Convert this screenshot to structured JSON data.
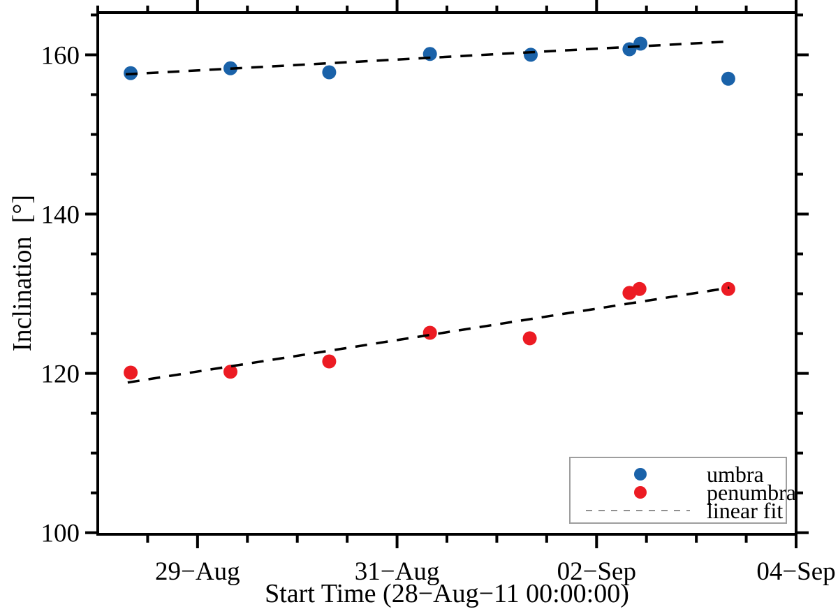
{
  "figure": {
    "background": "#ffffff",
    "description": "Scatter plot of sunspot umbra and penumbra inclination versus start time with dashed linear fits"
  },
  "chart_data": {
    "type": "scatter",
    "title": "",
    "xlabel": "Start Time (28−Aug−11 00:00:00)",
    "ylabel": "Inclination  [°]",
    "x_unit": "days after 28-Aug-11 00:00:00",
    "y_unit": "degrees",
    "xlim": [
      0,
      7
    ],
    "ylim": [
      99.8,
      165.3
    ],
    "grid": false,
    "x_major_ticks": [
      {
        "value": 1,
        "label": "29−Aug"
      },
      {
        "value": 3,
        "label": "31−Aug"
      },
      {
        "value": 5,
        "label": "02−Sep"
      },
      {
        "value": 7,
        "label": "04−Sep"
      }
    ],
    "x_minor_ticks": [
      0.5,
      1.5,
      2,
      2.5,
      3.5,
      4,
      4.5,
      5.5,
      6,
      6.5
    ],
    "y_major_ticks": [
      {
        "value": 100,
        "label": "100"
      },
      {
        "value": 120,
        "label": "120"
      },
      {
        "value": 140,
        "label": "140"
      },
      {
        "value": 160,
        "label": "160"
      }
    ],
    "y_minor_ticks": [
      105,
      110,
      115,
      125,
      130,
      135,
      145,
      150,
      155,
      165
    ],
    "series": [
      {
        "name": "umbra",
        "marker": "circle",
        "color": "#1A62A9",
        "points": [
          [
            0.33,
            157.7
          ],
          [
            1.33,
            158.3
          ],
          [
            2.32,
            157.8
          ],
          [
            3.33,
            160.1
          ],
          [
            4.34,
            160.0
          ],
          [
            5.33,
            160.7
          ],
          [
            5.44,
            161.4
          ],
          [
            6.32,
            157.0
          ]
        ]
      },
      {
        "name": "penumbra",
        "marker": "circle",
        "color": "#EC1B23",
        "points": [
          [
            0.33,
            120.1
          ],
          [
            1.33,
            120.2
          ],
          [
            2.32,
            121.5
          ],
          [
            3.33,
            125.1
          ],
          [
            4.33,
            124.4
          ],
          [
            5.33,
            130.1
          ],
          [
            5.43,
            130.6
          ],
          [
            6.32,
            130.6
          ]
        ]
      }
    ],
    "fits": [
      {
        "name": "umbra-linear-fit",
        "style": "dashed",
        "color": "#000000",
        "endpoints": [
          [
            0.28,
            157.55
          ],
          [
            6.3,
            161.65
          ]
        ]
      },
      {
        "name": "penumbra-linear-fit",
        "style": "dashed",
        "color": "#000000",
        "endpoints": [
          [
            0.3,
            118.85
          ],
          [
            6.33,
            130.75
          ]
        ]
      }
    ],
    "legend": {
      "position": "bottom-right",
      "border_color": "#9E9E9E",
      "entries": [
        {
          "label": "umbra",
          "marker": "circle",
          "color": "#1A62A9"
        },
        {
          "label": "penumbra",
          "marker": "circle",
          "color": "#EC1B23"
        },
        {
          "label": "linear fit",
          "marker": "dashed-line",
          "color": "#909090"
        }
      ]
    }
  }
}
